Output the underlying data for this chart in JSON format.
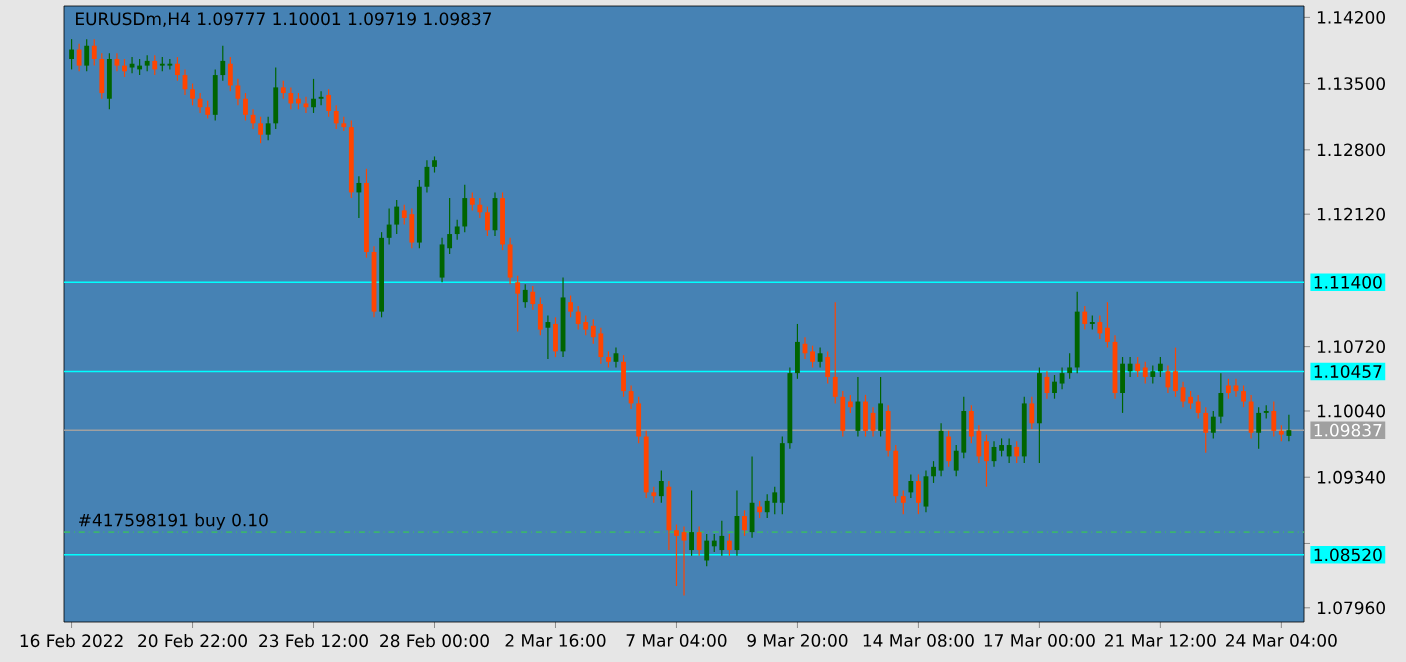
{
  "chart_data": {
    "type": "candlestick",
    "title": "EURUSDm,H4  1.09777 1.10001 1.09719 1.09837",
    "categories": [
      "16 Feb 2022",
      null,
      null,
      null,
      null,
      null,
      null,
      null,
      null,
      null,
      null,
      null,
      null,
      null,
      null,
      null,
      "20 Feb 22:00",
      null,
      null,
      null,
      null,
      null,
      null,
      null,
      null,
      null,
      null,
      null,
      null,
      null,
      null,
      null,
      "23 Feb 12:00",
      null,
      null,
      null,
      null,
      null,
      null,
      null,
      null,
      null,
      null,
      null,
      null,
      null,
      null,
      null,
      "28 Feb 00:00",
      null,
      null,
      null,
      null,
      null,
      null,
      null,
      null,
      null,
      null,
      null,
      null,
      null,
      null,
      null,
      "2 Mar 16:00",
      null,
      null,
      null,
      null,
      null,
      null,
      null,
      null,
      null,
      null,
      null,
      null,
      null,
      null,
      null,
      "7 Mar 04:00",
      null,
      null,
      null,
      null,
      null,
      null,
      null,
      null,
      null,
      null,
      null,
      null,
      null,
      null,
      null,
      "9 Mar 20:00",
      null,
      null,
      null,
      null,
      null,
      null,
      null,
      null,
      null,
      null,
      null,
      null,
      null,
      null,
      null,
      "14 Mar 08:00",
      null,
      null,
      null,
      null,
      null,
      null,
      null,
      null,
      null,
      null,
      null,
      null,
      null,
      null,
      null,
      "17 Mar 00:00",
      null,
      null,
      null,
      null,
      null,
      null,
      null,
      null,
      null,
      null,
      null,
      null,
      null,
      null,
      null,
      "21 Mar 12:00",
      null,
      null,
      null,
      null,
      null,
      null,
      null,
      null,
      null,
      null,
      null,
      null,
      null,
      null,
      null,
      "24 Mar 04:00",
      null
    ],
    "ohlc": [
      [
        1.1376,
        1.1397,
        1.1365,
        1.1386
      ],
      [
        1.1386,
        1.1392,
        1.1363,
        1.1369
      ],
      [
        1.1369,
        1.1397,
        1.1363,
        1.139
      ],
      [
        1.139,
        1.1397,
        1.1369,
        1.1376
      ],
      [
        1.1376,
        1.1382,
        1.1334,
        1.134
      ],
      [
        1.1334,
        1.1382,
        1.1323,
        1.1376
      ],
      [
        1.1376,
        1.1382,
        1.1363,
        1.1369
      ],
      [
        1.1369,
        1.1376,
        1.1357,
        1.1363
      ],
      [
        1.1367,
        1.1378,
        1.1361,
        1.1371
      ],
      [
        1.1365,
        1.1376,
        1.1359,
        1.1369
      ],
      [
        1.1369,
        1.138,
        1.1363,
        1.1374
      ],
      [
        1.1374,
        1.138,
        1.1359,
        1.1365
      ],
      [
        1.1369,
        1.1378,
        1.1363,
        1.1371
      ],
      [
        1.1369,
        1.1376,
        1.1365,
        1.1371
      ],
      [
        1.1371,
        1.1378,
        1.1353,
        1.1359
      ],
      [
        1.1359,
        1.1365,
        1.1338,
        1.1344
      ],
      [
        1.1344,
        1.135,
        1.1327,
        1.1334
      ],
      [
        1.1334,
        1.134,
        1.1319,
        1.1325
      ],
      [
        1.1325,
        1.1332,
        1.1313,
        1.1317
      ],
      [
        1.1317,
        1.1365,
        1.1311,
        1.1359
      ],
      [
        1.1359,
        1.139,
        1.1353,
        1.1374
      ],
      [
        1.1371,
        1.1378,
        1.1342,
        1.1348
      ],
      [
        1.1348,
        1.1355,
        1.1327,
        1.1334
      ],
      [
        1.1334,
        1.134,
        1.1311,
        1.1317
      ],
      [
        1.1317,
        1.1323,
        1.1302,
        1.1308
      ],
      [
        1.1308,
        1.1315,
        1.1287,
        1.1296
      ],
      [
        1.1296,
        1.1315,
        1.129,
        1.1308
      ],
      [
        1.1308,
        1.1367,
        1.1302,
        1.1346
      ],
      [
        1.1346,
        1.1353,
        1.1334,
        1.134
      ],
      [
        1.134,
        1.1346,
        1.1323,
        1.1329
      ],
      [
        1.1334,
        1.134,
        1.1323,
        1.1329
      ],
      [
        1.1329,
        1.1336,
        1.1319,
        1.1325
      ],
      [
        1.1325,
        1.1355,
        1.1319,
        1.1334
      ],
      [
        1.1334,
        1.1342,
        1.1327,
        1.1336
      ],
      [
        1.1338,
        1.1344,
        1.1315,
        1.1321
      ],
      [
        1.1321,
        1.1327,
        1.1302,
        1.1308
      ],
      [
        1.1308,
        1.1315,
        1.13,
        1.1304
      ],
      [
        1.1304,
        1.1311,
        1.1229,
        1.1235
      ],
      [
        1.1235,
        1.1252,
        1.1208,
        1.1245
      ],
      [
        1.1245,
        1.126,
        1.1166,
        1.1172
      ],
      [
        1.1172,
        1.1178,
        1.1103,
        1.1109
      ],
      [
        1.1109,
        1.1193,
        1.1103,
        1.1187
      ],
      [
        1.1187,
        1.1218,
        1.118,
        1.1201
      ],
      [
        1.1201,
        1.1227,
        1.1191,
        1.122
      ],
      [
        1.1216,
        1.1222,
        1.1201,
        1.1208
      ],
      [
        1.1212,
        1.1218,
        1.1176,
        1.1182
      ],
      [
        1.1182,
        1.1248,
        1.1176,
        1.1241
      ],
      [
        1.1241,
        1.1269,
        1.1235,
        1.1262
      ],
      [
        1.1262,
        1.1273,
        1.1256,
        1.1269
      ],
      [
        1.1145,
        1.1187,
        1.114,
        1.118
      ],
      [
        1.1176,
        1.1229,
        1.117,
        1.1191
      ],
      [
        1.1191,
        1.1206,
        1.1185,
        1.1199
      ],
      [
        1.1199,
        1.1243,
        1.1193,
        1.1229
      ],
      [
        1.1229,
        1.1235,
        1.1216,
        1.1222
      ],
      [
        1.1222,
        1.1229,
        1.1208,
        1.1214
      ],
      [
        1.1214,
        1.122,
        1.1189,
        1.1195
      ],
      [
        1.1195,
        1.1235,
        1.1189,
        1.1229
      ],
      [
        1.1229,
        1.1235,
        1.1174,
        1.118
      ],
      [
        1.118,
        1.1187,
        1.1138,
        1.1145
      ],
      [
        1.114,
        1.1147,
        1.1088,
        1.1128
      ],
      [
        1.1119,
        1.1138,
        1.1113,
        1.1132
      ],
      [
        1.113,
        1.1136,
        1.1111,
        1.1117
      ],
      [
        1.1117,
        1.1124,
        1.1084,
        1.109
      ],
      [
        1.1092,
        1.1105,
        1.1059,
        1.1098
      ],
      [
        1.1096,
        1.1103,
        1.1061,
        1.1067
      ],
      [
        1.1067,
        1.1145,
        1.1061,
        1.1124
      ],
      [
        1.1119,
        1.1126,
        1.1103,
        1.1109
      ],
      [
        1.1109,
        1.1115,
        1.109,
        1.1096
      ],
      [
        1.1098,
        1.1105,
        1.1084,
        1.109
      ],
      [
        1.1094,
        1.1101,
        1.1075,
        1.1082
      ],
      [
        1.1086,
        1.1092,
        1.1054,
        1.1061
      ],
      [
        1.1061,
        1.1067,
        1.105,
        1.1056
      ],
      [
        1.1056,
        1.1071,
        1.105,
        1.1065
      ],
      [
        1.1056,
        1.1063,
        1.1019,
        1.1025
      ],
      [
        1.1025,
        1.1031,
        1.1006,
        1.1012
      ],
      [
        1.1012,
        1.1019,
        1.097,
        1.0977
      ],
      [
        1.0977,
        1.0983,
        1.0912,
        1.0918
      ],
      [
        1.0918,
        1.0924,
        1.0907,
        1.0914
      ],
      [
        1.0914,
        1.0941,
        1.0907,
        1.093
      ],
      [
        1.0924,
        1.093,
        1.0857,
        1.0878
      ],
      [
        1.0878,
        1.0884,
        1.0819,
        1.0872
      ],
      [
        1.0876,
        1.0882,
        1.0809,
        1.0867
      ],
      [
        1.0857,
        1.092,
        1.0851,
        1.0876
      ],
      [
        1.0876,
        1.0882,
        1.0851,
        1.0857
      ],
      [
        1.0846,
        1.0874,
        1.084,
        1.0867
      ],
      [
        1.0861,
        1.0874,
        1.0855,
        1.0867
      ],
      [
        1.0857,
        1.0888,
        1.0851,
        1.0872
      ],
      [
        1.0867,
        1.0874,
        1.0851,
        1.0857
      ],
      [
        1.0857,
        1.092,
        1.0851,
        1.0893
      ],
      [
        1.0893,
        1.0899,
        1.0872,
        1.0878
      ],
      [
        1.0876,
        1.0956,
        1.087,
        1.0907
      ],
      [
        1.0903,
        1.0909,
        1.0891,
        1.0897
      ],
      [
        1.0897,
        1.0916,
        1.0891,
        1.0909
      ],
      [
        1.0907,
        1.0924,
        1.0895,
        1.0918
      ],
      [
        1.0907,
        1.0977,
        1.0895,
        1.097
      ],
      [
        1.097,
        1.105,
        1.0964,
        1.1044
      ],
      [
        1.1044,
        1.1096,
        1.1038,
        1.1077
      ],
      [
        1.1075,
        1.1082,
        1.1059,
        1.1065
      ],
      [
        1.1067,
        1.1073,
        1.105,
        1.1056
      ],
      [
        1.1056,
        1.1071,
        1.105,
        1.1065
      ],
      [
        1.1061,
        1.1067,
        1.1033,
        1.104
      ],
      [
        1.104,
        1.1119,
        1.1012,
        1.1019
      ],
      [
        1.1019,
        1.1025,
        1.0977,
        1.0983
      ],
      [
        1.1014,
        1.1021,
        1.1002,
        1.1008
      ],
      [
        1.0983,
        1.104,
        1.0977,
        1.1014
      ],
      [
        1.1014,
        1.1021,
        1.0977,
        1.0983
      ],
      [
        1.1002,
        1.1008,
        1.0977,
        1.0983
      ],
      [
        1.0983,
        1.104,
        1.0977,
        1.1012
      ],
      [
        1.1004,
        1.101,
        1.0956,
        1.0962
      ],
      [
        1.0962,
        1.0968,
        1.0907,
        1.0914
      ],
      [
        1.0914,
        1.092,
        1.0895,
        1.0907
      ],
      [
        1.0918,
        1.0937,
        1.0912,
        1.093
      ],
      [
        1.093,
        1.0937,
        1.0895,
        1.0907
      ],
      [
        1.0903,
        1.0941,
        1.0897,
        1.0935
      ],
      [
        1.0935,
        1.0951,
        1.0928,
        1.0945
      ],
      [
        1.0941,
        1.0991,
        1.0935,
        1.0983
      ],
      [
        1.0977,
        1.0983,
        1.0945,
        1.0951
      ],
      [
        1.0941,
        1.0968,
        1.0935,
        1.0962
      ],
      [
        1.096,
        1.1019,
        1.0954,
        1.1004
      ],
      [
        1.1004,
        1.101,
        1.097,
        1.0977
      ],
      [
        1.0983,
        1.0989,
        1.0949,
        1.0956
      ],
      [
        1.0972,
        1.0979,
        1.0924,
        1.0951
      ],
      [
        1.0951,
        1.0972,
        1.0945,
        1.0966
      ],
      [
        1.0962,
        1.0975,
        1.0956,
        1.0968
      ],
      [
        1.0956,
        1.0975,
        1.0949,
        1.0968
      ],
      [
        1.0966,
        1.0972,
        1.0949,
        1.0956
      ],
      [
        1.0956,
        1.1019,
        1.0949,
        1.1012
      ],
      [
        1.1012,
        1.1019,
        1.0985,
        1.0991
      ],
      [
        1.0991,
        1.105,
        1.0949,
        1.1044
      ],
      [
        1.104,
        1.1046,
        1.1017,
        1.1023
      ],
      [
        1.1023,
        1.1042,
        1.1017,
        1.1035
      ],
      [
        1.1033,
        1.105,
        1.1027,
        1.1044
      ],
      [
        1.1044,
        1.1065,
        1.1038,
        1.105
      ],
      [
        1.105,
        1.113,
        1.1044,
        1.1109
      ],
      [
        1.1109,
        1.1115,
        1.109,
        1.1096
      ],
      [
        1.1096,
        1.1105,
        1.109,
        1.1098
      ],
      [
        1.1098,
        1.1105,
        1.108,
        1.1086
      ],
      [
        1.1092,
        1.1119,
        1.1071,
        1.1077
      ],
      [
        1.1077,
        1.1084,
        1.1017,
        1.1023
      ],
      [
        1.1023,
        1.1061,
        1.1002,
        1.1054
      ],
      [
        1.1046,
        1.1061,
        1.104,
        1.1054
      ],
      [
        1.1054,
        1.1061,
        1.104,
        1.1046
      ],
      [
        1.105,
        1.1056,
        1.1033,
        1.104
      ],
      [
        1.104,
        1.1052,
        1.1033,
        1.1046
      ],
      [
        1.1046,
        1.1061,
        1.104,
        1.1054
      ],
      [
        1.1046,
        1.1052,
        1.1023,
        1.1029
      ],
      [
        1.1046,
        1.1071,
        1.1019,
        1.1025
      ],
      [
        1.1029,
        1.1035,
        1.1008,
        1.1014
      ],
      [
        1.1019,
        1.1025,
        1.1006,
        1.1012
      ],
      [
        1.1014,
        1.1021,
        1.0996,
        1.1002
      ],
      [
        1.1002,
        1.1008,
        1.096,
        1.0981
      ],
      [
        1.0981,
        1.1004,
        1.0975,
        1.0998
      ],
      [
        1.0998,
        1.1044,
        1.0991,
        1.1023
      ],
      [
        1.1031,
        1.1038,
        1.1017,
        1.1023
      ],
      [
        1.1031,
        1.1038,
        1.1019,
        1.1025
      ],
      [
        1.1025,
        1.1031,
        1.1008,
        1.1014
      ],
      [
        1.1014,
        1.1021,
        1.0975,
        1.0981
      ],
      [
        1.0981,
        1.1008,
        1.0964,
        1.1002
      ],
      [
        1.1002,
        1.101,
        1.0996,
        1.1004
      ],
      [
        1.1004,
        1.1014,
        1.0977,
        1.0983
      ],
      [
        1.0983,
        1.0989,
        1.0972,
        1.0979
      ],
      [
        1.09777,
        1.10001,
        1.09719,
        1.09837
      ]
    ],
    "ylim": [
      1.0781,
      1.1432
    ],
    "yticks": [
      {
        "value": 1.142,
        "label": "1.14200"
      },
      {
        "value": 1.135,
        "label": "1.13500"
      },
      {
        "value": 1.128,
        "label": "1.12800"
      },
      {
        "value": 1.1212,
        "label": "1.12120"
      },
      {
        "value": 1.1072,
        "label": "1.10720"
      },
      {
        "value": 1.1004,
        "label": "1.10040"
      },
      {
        "value": 1.0934,
        "label": "1.09340"
      },
      {
        "value": 1.0864,
        "label": null
      },
      {
        "value": 1.0796,
        "label": "1.07960"
      }
    ],
    "ref_lines": [
      {
        "axis": "y",
        "value": 1.114,
        "label": "1.11400",
        "color": "#00ffff",
        "line_style": "solid"
      },
      {
        "axis": "y",
        "value": 1.10457,
        "label": "1.10457",
        "color": "#00ffff",
        "line_style": "solid"
      },
      {
        "axis": "y",
        "value": 1.09837,
        "label": "1.09837",
        "color": "#a0a0a0",
        "line_style": "solid"
      },
      {
        "axis": "y",
        "value": 1.0876,
        "label": "#417598191 buy 0.10",
        "color": "#3cb371",
        "line_style": "dashed"
      },
      {
        "axis": "y",
        "value": 1.0852,
        "label": "1.08520",
        "color": "#00ffff",
        "line_style": "solid"
      }
    ]
  }
}
